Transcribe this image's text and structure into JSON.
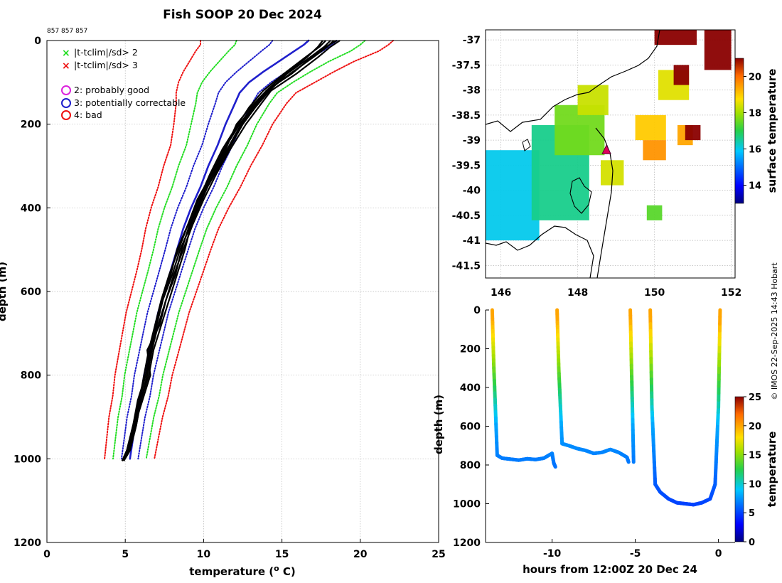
{
  "title": "Fish SOOP 20 Dec 2024",
  "platform_ids": "857 857 857",
  "credit": "© IMOS 22-Sep-2025 14:43 Hobart",
  "legend": {
    "crit2": "|t-tclim|/sd> 2",
    "crit3": "|t-tclim|/sd> 3",
    "flag2": "2: probably good",
    "flag3": "3: potentially correctable",
    "flag4": "4: bad"
  },
  "colors": {
    "profile": "#000000",
    "clim_mean": "#1f1fcc",
    "sd1": "#1f1fcc",
    "sd2": "#22dd22",
    "sd3": "#ee1111",
    "flag2": "#dd22dd",
    "flag3": "#1f1fcc",
    "flag4": "#ee1111"
  },
  "chart_data": [
    {
      "id": "profile",
      "type": "line",
      "xlabel": "temperature (o C)",
      "xlabel_main": "temperature (",
      "xlabel_sup": "o",
      "xlabel_end": " C)",
      "ylabel": "depth (m)",
      "xlim": [
        0,
        25
      ],
      "ylim": [
        1200,
        0
      ],
      "xticks": [
        "0",
        "5",
        "10",
        "15",
        "20",
        "25"
      ],
      "yticks": [
        "0",
        "200",
        "400",
        "600",
        "800",
        "1000",
        "1200"
      ],
      "grid": true,
      "depth": [
        0,
        10,
        25,
        50,
        75,
        100,
        125,
        150,
        200,
        250,
        300,
        350,
        400,
        450,
        500,
        550,
        600,
        650,
        700,
        750,
        800,
        850,
        900,
        950,
        1000
      ],
      "clim_mean": [
        16.7,
        16.4,
        15.8,
        14.8,
        13.8,
        12.9,
        12.3,
        12.0,
        11.4,
        10.9,
        10.3,
        9.8,
        9.2,
        8.7,
        8.3,
        7.9,
        7.5,
        7.1,
        6.8,
        6.5,
        6.2,
        6.0,
        5.7,
        5.5,
        5.3
      ],
      "sd_plus": [
        1.8,
        1.8,
        1.8,
        1.6,
        1.5,
        1.4,
        1.2,
        1.1,
        1.0,
        0.95,
        0.9,
        0.85,
        0.8,
        0.75,
        0.72,
        0.7,
        0.68,
        0.66,
        0.64,
        0.62,
        0.6,
        0.58,
        0.56,
        0.54,
        0.52
      ],
      "sd_minus": [
        2.3,
        2.2,
        2.1,
        1.9,
        1.7,
        1.5,
        1.35,
        1.25,
        1.1,
        1.0,
        0.95,
        0.9,
        0.85,
        0.8,
        0.75,
        0.72,
        0.7,
        0.68,
        0.66,
        0.64,
        0.62,
        0.6,
        0.58,
        0.56,
        0.54
      ],
      "series": [
        {
          "name": "profile 1",
          "depth": [
            0,
            15,
            40,
            80,
            120,
            160,
            200,
            260,
            320,
            380,
            440,
            500,
            560,
            620,
            680,
            740,
            800,
            860,
            920,
            980,
            1005
          ],
          "values": [
            18.3,
            17.9,
            17.0,
            15.5,
            14.1,
            13.2,
            12.4,
            11.5,
            10.6,
            9.9,
            9.2,
            8.5,
            8.0,
            7.4,
            7.0,
            6.7,
            6.3,
            5.9,
            5.6,
            5.2,
            4.9
          ]
        },
        {
          "name": "profile 2",
          "depth": [
            0,
            15,
            40,
            80,
            120,
            160,
            200,
            260,
            320,
            380,
            440,
            500,
            560,
            620,
            680,
            740,
            800,
            860,
            920,
            980,
            1005
          ],
          "values": [
            18.7,
            18.1,
            17.3,
            15.9,
            14.3,
            13.5,
            12.7,
            11.7,
            10.8,
            10.0,
            9.3,
            8.7,
            8.1,
            7.6,
            7.1,
            6.7,
            6.4,
            6.0,
            5.7,
            5.3,
            4.9
          ]
        },
        {
          "name": "profile 3",
          "depth": [
            0,
            15,
            40,
            80,
            120,
            160,
            200,
            260,
            320,
            380,
            440,
            500,
            560,
            620,
            680,
            740,
            800,
            860,
            920,
            980,
            1005
          ],
          "values": [
            17.8,
            17.4,
            16.5,
            15.1,
            13.8,
            12.9,
            12.2,
            11.2,
            10.4,
            9.7,
            9.0,
            8.4,
            7.8,
            7.3,
            6.9,
            6.5,
            6.2,
            5.9,
            5.5,
            5.1,
            4.8
          ]
        },
        {
          "name": "profile 4",
          "depth": [
            0,
            15,
            40,
            80,
            120,
            160,
            200,
            260,
            320,
            380,
            440,
            500,
            560,
            620,
            680,
            740,
            800,
            860,
            920,
            980,
            1005
          ],
          "values": [
            17.6,
            17.3,
            16.6,
            15.2,
            14.0,
            13.1,
            12.3,
            11.3,
            10.5,
            9.8,
            9.1,
            8.6,
            8.2,
            7.6,
            7.2,
            6.4,
            6.6,
            6.1,
            5.6,
            5.2,
            4.8
          ]
        },
        {
          "name": "profile 5",
          "depth": [
            0,
            15,
            40,
            80,
            120,
            160,
            200,
            260,
            320,
            380,
            440,
            500,
            560,
            620,
            680,
            740,
            800,
            860,
            920,
            980,
            1005
          ],
          "values": [
            18.1,
            17.7,
            16.8,
            15.3,
            14.2,
            13.3,
            12.5,
            11.6,
            10.7,
            9.8,
            9.2,
            8.8,
            8.3,
            7.8,
            7.3,
            6.8,
            6.5,
            6.0,
            5.7,
            5.3,
            4.9
          ]
        },
        {
          "name": "profile 6",
          "depth": [
            0,
            15,
            40,
            80,
            120,
            160,
            200,
            260,
            320,
            380,
            440,
            500,
            560,
            620,
            680,
            740,
            800,
            860,
            920,
            980,
            1005
          ],
          "values": [
            18.5,
            17.8,
            16.9,
            15.6,
            14.0,
            13.0,
            12.1,
            11.4,
            10.5,
            9.6,
            9.0,
            8.3,
            7.9,
            7.4,
            7.0,
            6.6,
            6.3,
            5.8,
            5.5,
            5.1,
            4.8
          ]
        }
      ]
    },
    {
      "id": "sst_map",
      "type": "heatmap",
      "title": "",
      "colorbar_label": "surface temperature",
      "colorbar_ticks": [
        "14",
        "16",
        "18",
        "20"
      ],
      "colorbar_range": [
        13,
        21
      ],
      "xlim": [
        145.6,
        152.1
      ],
      "ylim": [
        -41.75,
        -36.8
      ],
      "xticks": [
        "146",
        "148",
        "150",
        "152"
      ],
      "yticks": [
        "-37",
        "-37.5",
        "-38",
        "-38.5",
        "-39",
        "-39.5",
        "-40",
        "-40.5",
        "-41",
        "-41.5"
      ],
      "marker": {
        "lon": 148.75,
        "lat": -39.2,
        "label": "vessel position"
      },
      "sst_blocks": [
        {
          "lon": [
            145.6,
            147.0
          ],
          "lat": [
            -41.0,
            -39.2
          ],
          "value": 16.0
        },
        {
          "lon": [
            146.8,
            148.3
          ],
          "lat": [
            -40.6,
            -38.7
          ],
          "value": 16.6
        },
        {
          "lon": [
            147.4,
            148.7
          ],
          "lat": [
            -39.3,
            -38.3
          ],
          "value": 17.6
        },
        {
          "lon": [
            148.0,
            148.8
          ],
          "lat": [
            -38.5,
            -37.9
          ],
          "value": 18.3
        },
        {
          "lon": [
            149.5,
            150.3
          ],
          "lat": [
            -39.0,
            -38.5
          ],
          "value": 19.0
        },
        {
          "lon": [
            150.1,
            150.9
          ],
          "lat": [
            -38.2,
            -37.6
          ],
          "value": 18.5
        },
        {
          "lon": [
            149.7,
            150.3
          ],
          "lat": [
            -39.4,
            -39.0
          ],
          "value": 19.6
        },
        {
          "lon": [
            150.6,
            151.0
          ],
          "lat": [
            -39.1,
            -38.7
          ],
          "value": 19.4
        },
        {
          "lon": [
            150.0,
            151.1
          ],
          "lat": [
            -37.1,
            -36.8
          ],
          "value": 21.5
        },
        {
          "lon": [
            150.5,
            150.9
          ],
          "lat": [
            -37.9,
            -37.5
          ],
          "value": 21.3
        },
        {
          "lon": [
            151.3,
            152.0
          ],
          "lat": [
            -37.6,
            -36.8
          ],
          "value": 21.2
        },
        {
          "lon": [
            150.8,
            151.2
          ],
          "lat": [
            -39.0,
            -38.7
          ],
          "value": 21.0
        },
        {
          "lon": [
            149.8,
            150.2
          ],
          "lat": [
            -40.6,
            -40.3
          ],
          "value": 17.4
        },
        {
          "lon": [
            148.6,
            149.2
          ],
          "lat": [
            -39.9,
            -39.4
          ],
          "value": 18.4
        }
      ]
    },
    {
      "id": "section",
      "type": "scatter",
      "xlabel": "hours from 12:00Z 20 Dec 24",
      "ylabel": "depth (m)",
      "colorbar_label": "temperature",
      "colorbar_ticks": [
        "0",
        "5",
        "10",
        "15",
        "20",
        "25"
      ],
      "colorbar_range": [
        0,
        25
      ],
      "xlim": [
        -14,
        1
      ],
      "ylim": [
        1200,
        0
      ],
      "xticks": [
        "-10",
        "-5",
        "0"
      ],
      "yticks": [
        "0",
        "200",
        "400",
        "600",
        "800",
        "1000",
        "1200"
      ],
      "casts": [
        {
          "name": "cast 1",
          "t": [
            -13.6,
            -13.5,
            -13.3,
            -13.0,
            -12.5,
            -12.0,
            -11.5,
            -11.0,
            -10.5,
            -10.0,
            -9.9,
            -9.8
          ],
          "depth": [
            0,
            300,
            750,
            765,
            770,
            775,
            768,
            772,
            765,
            740,
            790,
            810
          ]
        },
        {
          "name": "cast 2",
          "t": [
            -9.7,
            -9.6,
            -9.4,
            -9.0,
            -8.5,
            -8.0,
            -7.5,
            -7.0,
            -6.5,
            -6.0,
            -5.5,
            -5.4
          ],
          "depth": [
            0,
            300,
            690,
            700,
            715,
            725,
            740,
            735,
            720,
            735,
            760,
            785
          ]
        },
        {
          "name": "cast 3",
          "t": [
            -5.3,
            -5.2,
            -5.1
          ],
          "depth": [
            0,
            400,
            785
          ]
        },
        {
          "name": "cast 4",
          "t": [
            -4.1,
            -4.0,
            -3.8,
            -3.5,
            -3.0,
            -2.5,
            -2.0,
            -1.5,
            -1.0,
            -0.5,
            -0.2,
            0.0,
            0.1
          ],
          "depth": [
            0,
            500,
            900,
            940,
            975,
            995,
            1000,
            1005,
            995,
            975,
            900,
            500,
            0
          ]
        }
      ]
    }
  ]
}
